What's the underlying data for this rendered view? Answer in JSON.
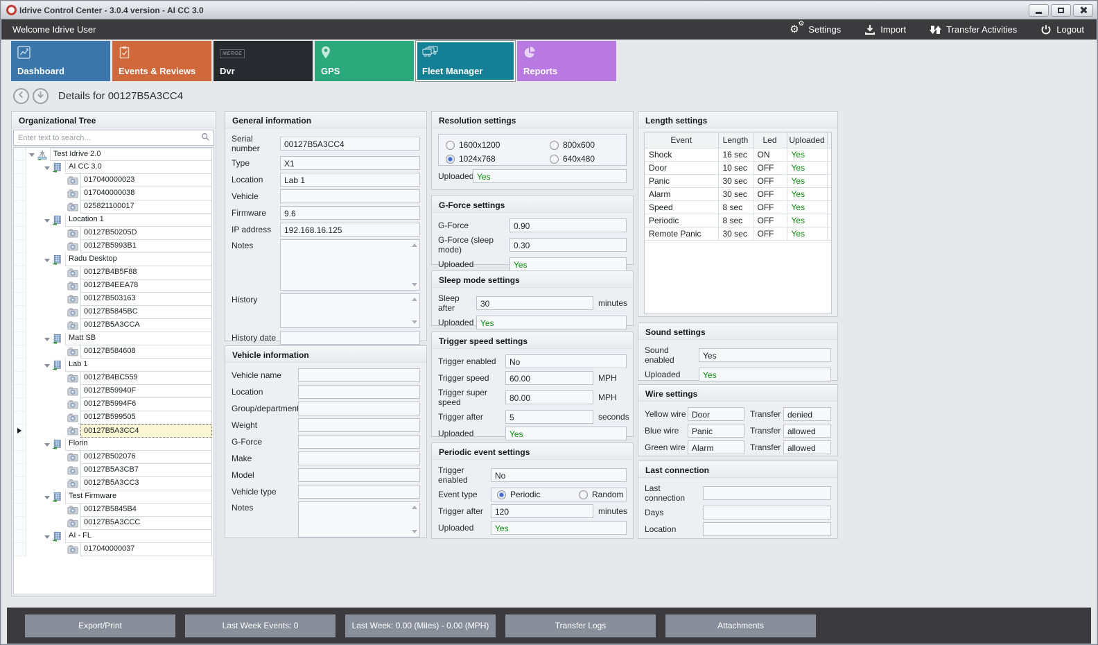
{
  "window": {
    "title": "Idrive Control Center - 3.0.4 version - AI CC 3.0",
    "controls": [
      {
        "name": "minimize"
      },
      {
        "name": "maximize"
      },
      {
        "name": "close"
      }
    ]
  },
  "topbar": {
    "welcome": "Welcome Idrive User",
    "actions": [
      {
        "label": "Settings",
        "icon": "gears-icon"
      },
      {
        "label": "Import",
        "icon": "import-icon"
      },
      {
        "label": "Transfer Activities",
        "icon": "transfer-icon"
      },
      {
        "label": "Logout",
        "icon": "power-icon"
      }
    ]
  },
  "tabs": [
    {
      "label": "Dashboard",
      "icon": "chart-icon",
      "color": "#3a76a9",
      "selected": false
    },
    {
      "label": "Events & Reviews",
      "icon": "clipboard-icon",
      "color": "#d0683b",
      "selected": false
    },
    {
      "label": "Dvr",
      "icon": "merge-logo-icon",
      "icon_text": "MERGE",
      "color": "#26292d",
      "selected": false
    },
    {
      "label": "GPS",
      "icon": "map-pin-icon",
      "color": "#2ca87d",
      "selected": false
    },
    {
      "label": "Fleet Manager",
      "icon": "fleet-icon",
      "color": "#147f95",
      "selected": true
    },
    {
      "label": "Reports",
      "icon": "pie-icon",
      "color": "#b87ae0",
      "selected": false
    }
  ],
  "details": {
    "title": "Details for 00127B5A3CC4"
  },
  "tree": {
    "title": "Organizational Tree",
    "search_placeholder": "Enter text to search...",
    "nodes": [
      {
        "label": "Test Idrive 2.0",
        "level": 0,
        "type": "root",
        "selected": false
      },
      {
        "label": "AI CC 3.0",
        "level": 1,
        "type": "group",
        "selected": false
      },
      {
        "label": "017040000023",
        "level": 2,
        "type": "device",
        "selected": false
      },
      {
        "label": "017040000038",
        "level": 2,
        "type": "device",
        "selected": false
      },
      {
        "label": "025821100017",
        "level": 2,
        "type": "device",
        "selected": false
      },
      {
        "label": "Location 1",
        "level": 1,
        "type": "group",
        "selected": false
      },
      {
        "label": "00127B50205D",
        "level": 2,
        "type": "device",
        "selected": false
      },
      {
        "label": "00127B5993B1",
        "level": 2,
        "type": "device",
        "selected": false
      },
      {
        "label": "Radu Desktop",
        "level": 1,
        "type": "group",
        "selected": false
      },
      {
        "label": "00127B4B5F88",
        "level": 2,
        "type": "device",
        "selected": false
      },
      {
        "label": "00127B4EEA78",
        "level": 2,
        "type": "device",
        "selected": false
      },
      {
        "label": "00127B503163",
        "level": 2,
        "type": "device",
        "selected": false
      },
      {
        "label": "00127B5845BC",
        "level": 2,
        "type": "device",
        "selected": false
      },
      {
        "label": "00127B5A3CCA",
        "level": 2,
        "type": "device",
        "selected": false
      },
      {
        "label": "Matt SB",
        "level": 1,
        "type": "group",
        "selected": false
      },
      {
        "label": "00127B584608",
        "level": 2,
        "type": "device",
        "selected": false
      },
      {
        "label": "Lab 1",
        "level": 1,
        "type": "group",
        "selected": false
      },
      {
        "label": "00127B4BC559",
        "level": 2,
        "type": "device",
        "selected": false
      },
      {
        "label": "00127B59940F",
        "level": 2,
        "type": "device",
        "selected": false
      },
      {
        "label": "00127B5994F6",
        "level": 2,
        "type": "device",
        "selected": false
      },
      {
        "label": "00127B599505",
        "level": 2,
        "type": "device",
        "selected": false
      },
      {
        "label": "00127B5A3CC4",
        "level": 2,
        "type": "device",
        "selected": true
      },
      {
        "label": "Florin",
        "level": 1,
        "type": "group",
        "selected": false
      },
      {
        "label": "00127B502076",
        "level": 2,
        "type": "device",
        "selected": false
      },
      {
        "label": "00127B5A3CB7",
        "level": 2,
        "type": "device",
        "selected": false
      },
      {
        "label": "00127B5A3CC3",
        "level": 2,
        "type": "device",
        "selected": false
      },
      {
        "label": "Test Firmware",
        "level": 1,
        "type": "group",
        "selected": false
      },
      {
        "label": "00127B5845B4",
        "level": 2,
        "type": "device",
        "selected": false
      },
      {
        "label": "00127B5A3CCC",
        "level": 2,
        "type": "device",
        "selected": false
      },
      {
        "label": "AI - FL",
        "level": 1,
        "type": "group",
        "selected": false
      },
      {
        "label": "017040000037",
        "level": 2,
        "type": "device",
        "selected": false
      }
    ]
  },
  "panels": {
    "general": {
      "title": "General information",
      "fields": [
        {
          "label": "Serial number",
          "value": "00127B5A3CC4"
        },
        {
          "label": "Type",
          "value": "X1"
        },
        {
          "label": "Location",
          "value": "Lab 1"
        },
        {
          "label": "Vehicle",
          "value": ""
        },
        {
          "label": "Firmware",
          "value": "9.6"
        },
        {
          "label": "IP address",
          "value": "192.168.16.125"
        },
        {
          "label": "Notes",
          "value": "",
          "kind": "textarea"
        },
        {
          "label": "History",
          "value": "",
          "kind": "textarea"
        },
        {
          "label": "History date",
          "value": ""
        }
      ]
    },
    "vehicle": {
      "title": "Vehicle information",
      "fields": [
        {
          "label": "Vehicle name",
          "value": ""
        },
        {
          "label": "Location",
          "value": ""
        },
        {
          "label": "Group/department",
          "value": ""
        },
        {
          "label": "Weight",
          "value": ""
        },
        {
          "label": "G-Force",
          "value": ""
        },
        {
          "label": "Make",
          "value": ""
        },
        {
          "label": "Model",
          "value": ""
        },
        {
          "label": "Vehicle type",
          "value": ""
        },
        {
          "label": "Notes",
          "value": "",
          "kind": "textarea"
        }
      ]
    },
    "resolution": {
      "title": "Resolution settings",
      "options": [
        {
          "label": "1600x1200",
          "selected": false
        },
        {
          "label": "800x600",
          "selected": false
        },
        {
          "label": "1024x768",
          "selected": true
        },
        {
          "label": "640x480",
          "selected": false
        }
      ],
      "fields": [
        {
          "label": "Uploaded",
          "value": "Yes",
          "green": true
        }
      ]
    },
    "gforce": {
      "title": "G-Force settings",
      "fields": [
        {
          "label": "G-Force",
          "value": "0.90"
        },
        {
          "label": "G-Force (sleep mode)",
          "value": "0.30"
        },
        {
          "label": "Uploaded",
          "value": "Yes",
          "green": true
        }
      ]
    },
    "sleep": {
      "title": "Sleep mode settings",
      "fields": [
        {
          "label": "Sleep after",
          "value": "30",
          "suffix": "minutes"
        },
        {
          "label": "Uploaded",
          "value": "Yes",
          "green": true
        }
      ]
    },
    "trigger_speed": {
      "title": "Trigger speed settings",
      "fields": [
        {
          "label": "Trigger enabled",
          "value": "No"
        },
        {
          "label": "Trigger speed",
          "value": "60.00",
          "suffix": "MPH"
        },
        {
          "label": "Trigger super speed",
          "value": "80.00",
          "suffix": "MPH"
        },
        {
          "label": "Trigger after",
          "value": "5",
          "suffix": "seconds"
        },
        {
          "label": "Uploaded",
          "value": "Yes",
          "green": true
        }
      ]
    },
    "periodic": {
      "title": "Periodic event settings",
      "fields_before": [
        {
          "label": "Trigger enabled",
          "value": "No"
        }
      ],
      "event_type": {
        "label": "Event type",
        "options": [
          {
            "label": "Periodic",
            "selected": true
          },
          {
            "label": "Random",
            "selected": false
          }
        ]
      },
      "fields_after": [
        {
          "label": "Trigger after",
          "value": "120",
          "suffix": "minutes"
        },
        {
          "label": "Uploaded",
          "value": "Yes",
          "green": true
        }
      ]
    },
    "length": {
      "title": "Length settings",
      "columns": [
        "Event",
        "Length",
        "Led",
        "Uploaded"
      ],
      "rows": [
        [
          "Shock",
          "16 sec",
          "ON",
          "Yes"
        ],
        [
          "Door",
          "10 sec",
          "OFF",
          "Yes"
        ],
        [
          "Panic",
          "30 sec",
          "OFF",
          "Yes"
        ],
        [
          "Alarm",
          "30 sec",
          "OFF",
          "Yes"
        ],
        [
          "Speed",
          "8 sec",
          "OFF",
          "Yes"
        ],
        [
          "Periodic",
          "8 sec",
          "OFF",
          "Yes"
        ],
        [
          "Remote Panic",
          "30 sec",
          "OFF",
          "Yes"
        ]
      ]
    },
    "sound": {
      "title": "Sound settings",
      "fields": [
        {
          "label": "Sound enabled",
          "value": "Yes"
        },
        {
          "label": "Uploaded",
          "value": "Yes",
          "green": true
        }
      ]
    },
    "wire": {
      "title": "Wire settings",
      "transfer_label": "Transfer",
      "rows": [
        {
          "wire": "Yellow wire",
          "event": "Door",
          "transfer": "denied"
        },
        {
          "wire": "Blue wire",
          "event": "Panic",
          "transfer": "allowed"
        },
        {
          "wire": "Green wire",
          "event": "Alarm",
          "transfer": "allowed"
        }
      ]
    },
    "last_connection": {
      "title": "Last connection",
      "fields": [
        {
          "label": "Last connection",
          "value": ""
        },
        {
          "label": "Days",
          "value": ""
        },
        {
          "label": "Location",
          "value": ""
        }
      ]
    }
  },
  "bottom_bar": {
    "buttons": [
      "Export/Print",
      "Last Week Events: 0",
      "Last Week: 0.00 (Miles) - 0.00 (MPH)",
      "Transfer Logs",
      "Attachments"
    ]
  },
  "colors": {
    "uploaded_green": "#0a8c0a",
    "selected_row": "#fcf8d5"
  }
}
